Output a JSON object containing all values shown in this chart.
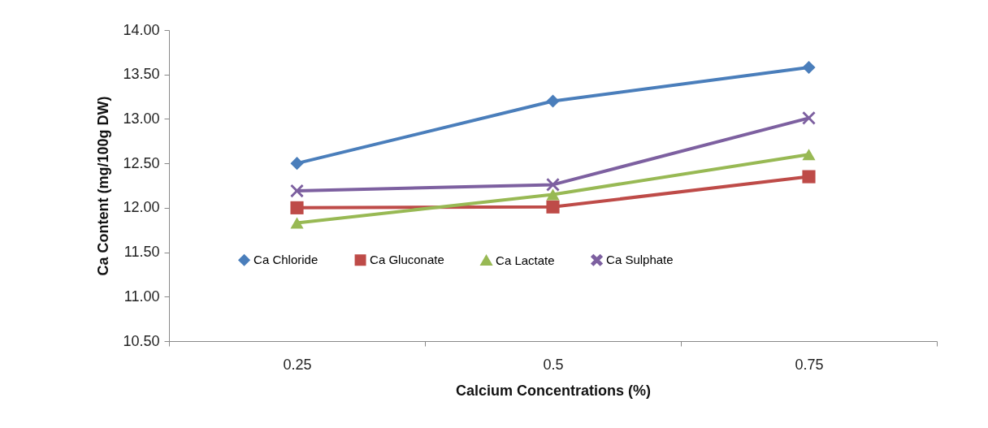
{
  "chart_data": {
    "type": "line",
    "xlabel": "Calcium Concentrations (%)",
    "ylabel": "Ca Content (mg/100g DW)",
    "categories": [
      "0.25",
      "0.5",
      "0.75"
    ],
    "series": [
      {
        "name": "Ca Chloride",
        "color": "#4a7ebb",
        "marker": "diamond",
        "values": [
          12.5,
          13.2,
          13.58
        ]
      },
      {
        "name": "Ca Gluconate",
        "color": "#be4b48",
        "marker": "square",
        "values": [
          12.0,
          12.01,
          12.35
        ]
      },
      {
        "name": "Ca Lactate",
        "color": "#98b954",
        "marker": "triangle",
        "values": [
          11.83,
          12.15,
          12.6
        ]
      },
      {
        "name": "Ca Sulphate",
        "color": "#7d60a0",
        "marker": "cross",
        "values": [
          12.19,
          12.26,
          13.01
        ]
      }
    ],
    "ylim": [
      10.5,
      14
    ],
    "yticks": [
      {
        "value": 10.5,
        "label": "10.50"
      },
      {
        "value": 11,
        "label": "11.00"
      },
      {
        "value": 11.5,
        "label": "11.50"
      },
      {
        "value": 12,
        "label": "12.00"
      },
      {
        "value": 12.5,
        "label": "12.50"
      },
      {
        "value": 13,
        "label": "13.00"
      },
      {
        "value": 13.5,
        "label": "13.50"
      },
      {
        "value": 14,
        "label": "14.00"
      }
    ],
    "grid": false,
    "legend": "bottom",
    "line_style": "solid"
  }
}
